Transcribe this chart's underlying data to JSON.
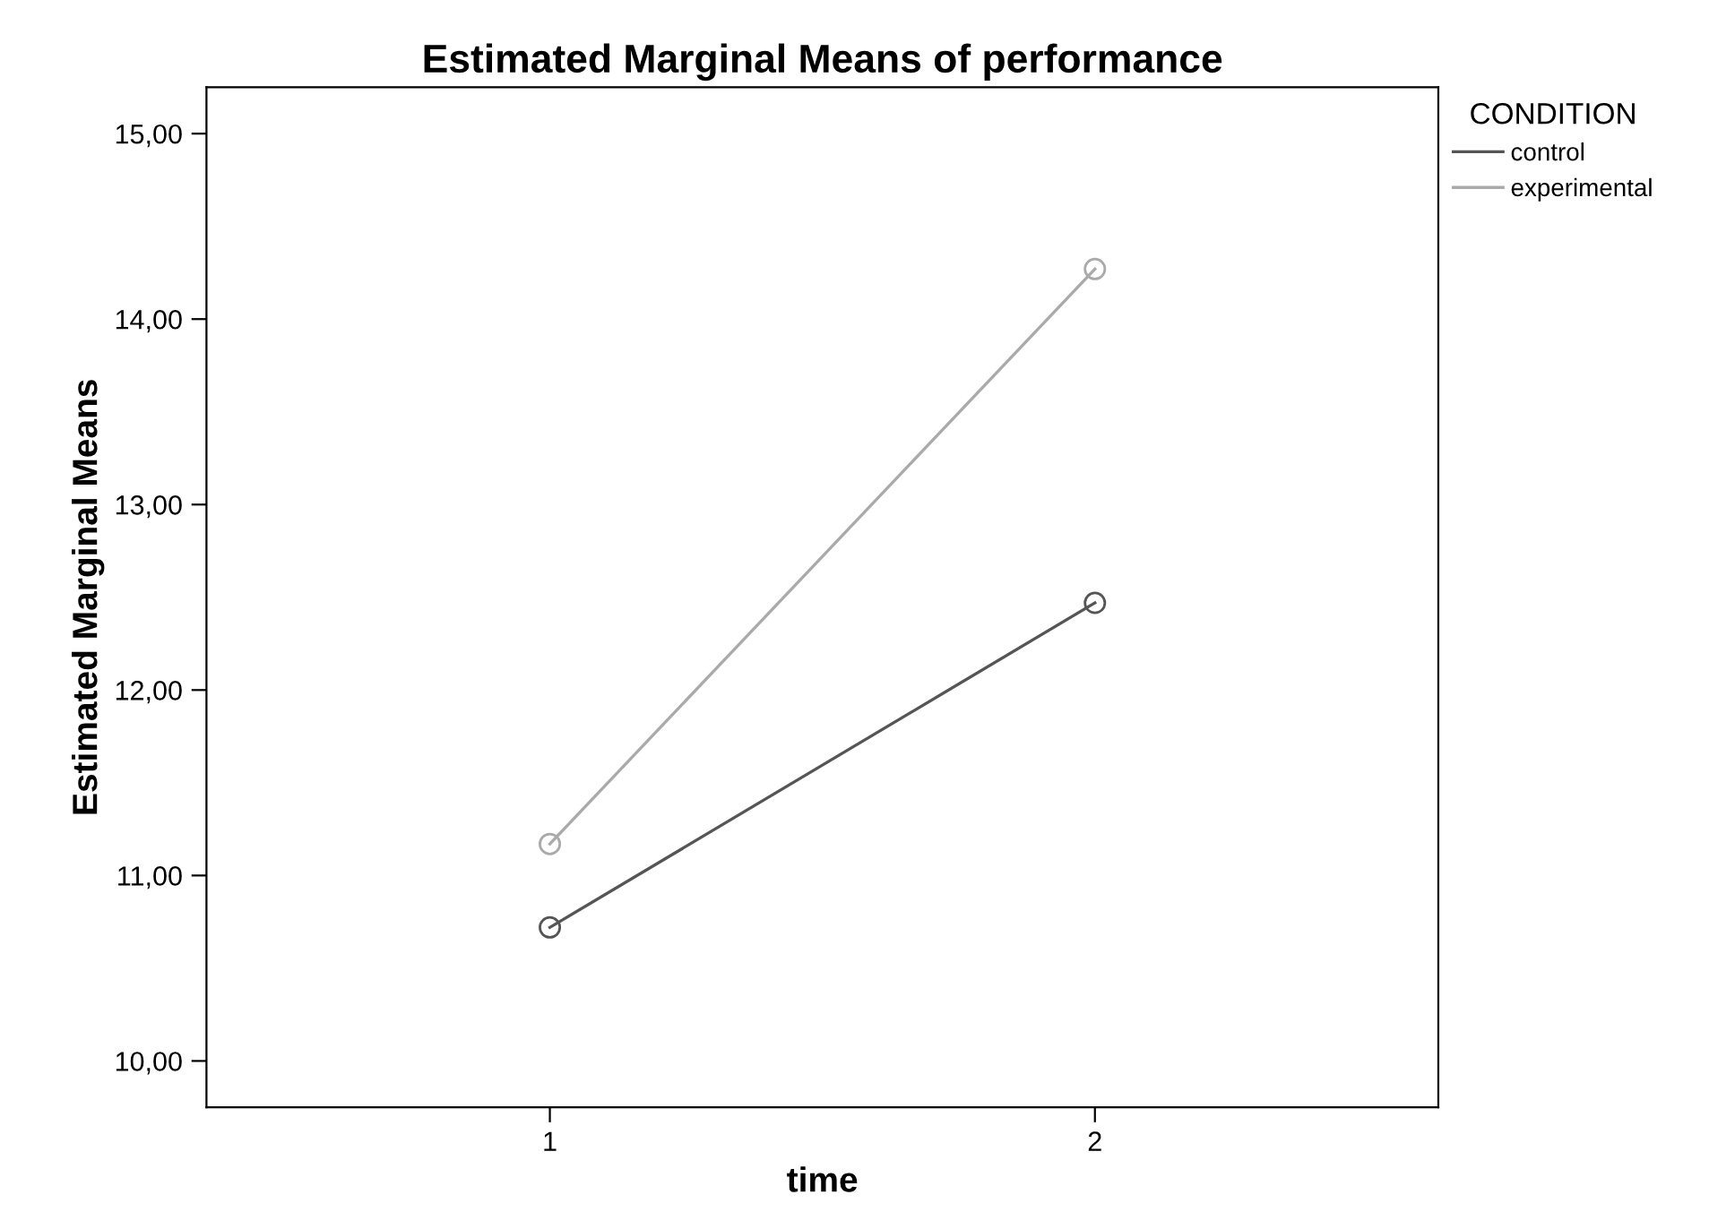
{
  "chart_data": {
    "type": "line",
    "title": "Estimated Marginal Means of performance",
    "xlabel": "time",
    "ylabel": "Estimated Marginal Means",
    "legend_title": "CONDITION",
    "categories": [
      "1",
      "2"
    ],
    "series": [
      {
        "name": "control",
        "color": "#555555",
        "values": [
          10.72,
          12.47
        ]
      },
      {
        "name": "experimental",
        "color": "#aaaaaa",
        "values": [
          11.17,
          14.27
        ]
      }
    ],
    "ylim": [
      9.75,
      15.25
    ],
    "yticks": [
      {
        "value": 10,
        "label": "10,00"
      },
      {
        "value": 11,
        "label": "11,00"
      },
      {
        "value": 12,
        "label": "12,00"
      },
      {
        "value": 13,
        "label": "13,00"
      },
      {
        "value": 14,
        "label": "14,00"
      },
      {
        "value": 15,
        "label": "15,00"
      }
    ],
    "grid": false,
    "legend": "right",
    "marker": "circle",
    "line_style": "solid"
  }
}
